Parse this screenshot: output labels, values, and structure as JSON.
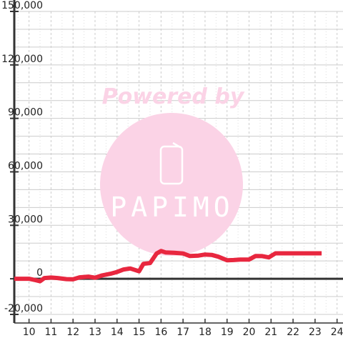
{
  "chart_data": {
    "type": "line",
    "title": "",
    "xlabel": "",
    "ylabel": "",
    "xlim": [
      9.33,
      24.27
    ],
    "ylim": [
      -20000,
      150000
    ],
    "x_ticks": [
      10,
      11,
      12,
      13,
      14,
      15,
      16,
      17,
      18,
      19,
      20,
      21,
      22,
      23,
      24
    ],
    "x_tick_labels": [
      "10",
      "11",
      "12",
      "13",
      "14",
      "15",
      "16",
      "17",
      "18",
      "19",
      "20",
      "21",
      "22",
      "23",
      "24"
    ],
    "y_ticks": [
      -20000,
      0,
      30000,
      60000,
      90000,
      120000,
      150000
    ],
    "y_tick_labels": [
      "-20,000",
      "0",
      "30,000",
      "60,000",
      "90,000",
      "120,000",
      "150,000"
    ],
    "grid": true,
    "legend": "none",
    "colors": {
      "series": "#e8273f",
      "axis": "#333333",
      "grid_major": "#cccccc",
      "grid_minor": "#dddddd",
      "watermark": "#fbd3e6"
    },
    "series": [
      {
        "name": "",
        "points": [
          [
            9.33,
            0
          ],
          [
            10.0,
            0
          ],
          [
            10.3,
            -800
          ],
          [
            10.5,
            -1400
          ],
          [
            10.7,
            400
          ],
          [
            11.0,
            700
          ],
          [
            11.3,
            400
          ],
          [
            11.7,
            -200
          ],
          [
            12.0,
            -300
          ],
          [
            12.3,
            800
          ],
          [
            12.7,
            1200
          ],
          [
            13.0,
            600
          ],
          [
            13.3,
            1800
          ],
          [
            13.7,
            2800
          ],
          [
            14.0,
            3800
          ],
          [
            14.3,
            5200
          ],
          [
            14.6,
            5800
          ],
          [
            15.0,
            4200
          ],
          [
            15.2,
            8400
          ],
          [
            15.5,
            8800
          ],
          [
            15.8,
            14200
          ],
          [
            16.0,
            15600
          ],
          [
            16.2,
            14800
          ],
          [
            16.6,
            14600
          ],
          [
            17.0,
            14200
          ],
          [
            17.3,
            12800
          ],
          [
            17.7,
            13000
          ],
          [
            18.0,
            13600
          ],
          [
            18.3,
            13400
          ],
          [
            18.6,
            12400
          ],
          [
            19.0,
            10400
          ],
          [
            19.3,
            10500
          ],
          [
            19.6,
            10800
          ],
          [
            20.0,
            10800
          ],
          [
            20.3,
            12800
          ],
          [
            20.6,
            12700
          ],
          [
            20.9,
            12000
          ],
          [
            21.2,
            14300
          ],
          [
            21.6,
            14300
          ],
          [
            22.0,
            14300
          ],
          [
            22.5,
            14300
          ],
          [
            23.0,
            14300
          ],
          [
            23.3,
            14300
          ]
        ]
      }
    ]
  },
  "watermark": {
    "powered_by": "Powered by",
    "brand": "PAPIMO"
  }
}
